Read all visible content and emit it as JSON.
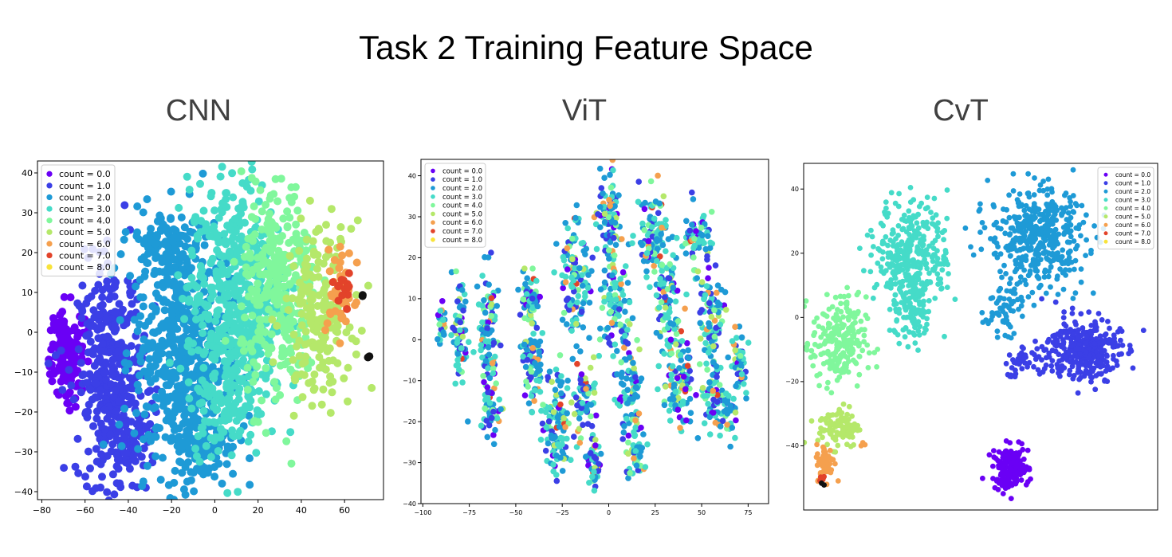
{
  "figure": {
    "title": "Task 2 Training Feature Space"
  },
  "chart_data": [
    {
      "type": "scatter",
      "title": "CNN",
      "xlim": [
        -82,
        78
      ],
      "ylim": [
        -42,
        43
      ],
      "xticks": [
        -80,
        -60,
        -40,
        -20,
        0,
        20,
        40,
        60
      ],
      "yticks": [
        -40,
        -30,
        -20,
        -10,
        0,
        10,
        20,
        30,
        40
      ],
      "legend": "upper-left",
      "grid": false,
      "series": [
        {
          "name": "count = 0.0",
          "color": "#6a00f5",
          "clusters": [
            {
              "x": -68,
              "y": -5,
              "rx": 7,
              "ry": 10,
              "n": 140
            }
          ]
        },
        {
          "name": "count = 1.0",
          "color": "#3b3fe6",
          "clusters": [
            {
              "x": -48,
              "y": -10,
              "rx": 14,
              "ry": 25,
              "n": 380
            },
            {
              "x": -38,
              "y": -28,
              "rx": 10,
              "ry": 8,
              "n": 60
            }
          ]
        },
        {
          "name": "count = 2.0",
          "color": "#1e9ad6",
          "clusters": [
            {
              "x": -15,
              "y": -5,
              "rx": 20,
              "ry": 28,
              "n": 520
            },
            {
              "x": -5,
              "y": -28,
              "rx": 14,
              "ry": 8,
              "n": 90
            },
            {
              "x": -25,
              "y": 22,
              "rx": 14,
              "ry": 8,
              "n": 90
            }
          ]
        },
        {
          "name": "count = 3.0",
          "color": "#45dbc8",
          "clusters": [
            {
              "x": 10,
              "y": 10,
              "rx": 20,
              "ry": 25,
              "n": 450
            },
            {
              "x": 5,
              "y": -15,
              "rx": 16,
              "ry": 15,
              "n": 150
            }
          ]
        },
        {
          "name": "count = 4.0",
          "color": "#80f79c",
          "clusters": [
            {
              "x": 30,
              "y": 10,
              "rx": 16,
              "ry": 25,
              "n": 320
            }
          ]
        },
        {
          "name": "count = 5.0",
          "color": "#b5e86a",
          "clusters": [
            {
              "x": 48,
              "y": 5,
              "rx": 14,
              "ry": 20,
              "n": 180
            }
          ]
        },
        {
          "name": "count = 6.0",
          "color": "#f5a04e",
          "clusters": [
            {
              "x": 58,
              "y": 10,
              "rx": 6,
              "ry": 10,
              "n": 45
            }
          ]
        },
        {
          "name": "count = 7.0",
          "color": "#e2432a",
          "clusters": [
            {
              "x": 60,
              "y": 11,
              "rx": 4,
              "ry": 4,
              "n": 14
            }
          ]
        },
        {
          "name": "count = 8.0",
          "color": "#f8e33a",
          "clusters": []
        },
        {
          "name": "",
          "color": "#111111",
          "clusters": [
            {
              "x": 68,
              "y": 9,
              "rx": 1,
              "ry": 1,
              "n": 2
            },
            {
              "x": 71,
              "y": -6,
              "rx": 1,
              "ry": 1,
              "n": 2
            }
          ]
        }
      ]
    },
    {
      "type": "scatter",
      "title": "ViT",
      "xlim": [
        -101,
        86
      ],
      "ylim": [
        -40,
        44
      ],
      "xticks": [
        -100,
        -75,
        -50,
        -25,
        0,
        25,
        50,
        75
      ],
      "yticks": [
        -40,
        -30,
        -20,
        -10,
        0,
        10,
        20,
        30,
        40
      ],
      "legend": "upper-left",
      "grid": false,
      "series": [
        {
          "name": "count = 0.0",
          "color": "#6a00f5",
          "mix": 0.05
        },
        {
          "name": "count = 1.0",
          "color": "#3b3fe6",
          "mix": 0.13
        },
        {
          "name": "count = 2.0",
          "color": "#1e9ad6",
          "mix": 0.3
        },
        {
          "name": "count = 3.0",
          "color": "#45dbc8",
          "mix": 0.3
        },
        {
          "name": "count = 4.0",
          "color": "#80f79c",
          "mix": 0.1
        },
        {
          "name": "count = 5.0",
          "color": "#b5e86a",
          "mix": 0.05
        },
        {
          "name": "count = 6.0",
          "color": "#f5a04e",
          "mix": 0.05
        },
        {
          "name": "count = 7.0",
          "color": "#e2432a",
          "mix": 0.015
        },
        {
          "name": "count = 8.0",
          "color": "#f8e33a",
          "mix": 0
        }
      ],
      "clusters": [
        {
          "x": -90,
          "y": 3,
          "rx": 2,
          "ry": 5,
          "n": 30
        },
        {
          "x": -80,
          "y": 0,
          "rx": 3,
          "ry": 12,
          "n": 70
        },
        {
          "x": -65,
          "y": 0,
          "rx": 5,
          "ry": 14,
          "n": 110
        },
        {
          "x": -63,
          "y": -18,
          "rx": 4,
          "ry": 6,
          "n": 35
        },
        {
          "x": -42,
          "y": 8,
          "rx": 5,
          "ry": 10,
          "n": 70
        },
        {
          "x": -40,
          "y": -8,
          "rx": 7,
          "ry": 8,
          "n": 70
        },
        {
          "x": -28,
          "y": -20,
          "rx": 6,
          "ry": 12,
          "n": 110
        },
        {
          "x": -18,
          "y": 15,
          "rx": 7,
          "ry": 14,
          "n": 120
        },
        {
          "x": -12,
          "y": -15,
          "rx": 5,
          "ry": 10,
          "n": 70
        },
        {
          "x": -8,
          "y": -30,
          "rx": 4,
          "ry": 5,
          "n": 40
        },
        {
          "x": 0,
          "y": 30,
          "rx": 6,
          "ry": 10,
          "n": 80
        },
        {
          "x": 3,
          "y": 10,
          "rx": 7,
          "ry": 12,
          "n": 100
        },
        {
          "x": 12,
          "y": -12,
          "rx": 6,
          "ry": 12,
          "n": 90
        },
        {
          "x": 15,
          "y": -28,
          "rx": 5,
          "ry": 5,
          "n": 40
        },
        {
          "x": 25,
          "y": 25,
          "rx": 8,
          "ry": 10,
          "n": 110
        },
        {
          "x": 32,
          "y": 8,
          "rx": 6,
          "ry": 10,
          "n": 80
        },
        {
          "x": 38,
          "y": -10,
          "rx": 8,
          "ry": 10,
          "n": 110
        },
        {
          "x": 48,
          "y": 25,
          "rx": 7,
          "ry": 8,
          "n": 70
        },
        {
          "x": 55,
          "y": 5,
          "rx": 7,
          "ry": 10,
          "n": 90
        },
        {
          "x": 58,
          "y": -15,
          "rx": 6,
          "ry": 8,
          "n": 70
        },
        {
          "x": 70,
          "y": -5,
          "rx": 4,
          "ry": 7,
          "n": 50
        },
        {
          "x": 66,
          "y": -18,
          "rx": 3,
          "ry": 5,
          "n": 25
        }
      ]
    },
    {
      "type": "scatter",
      "title": "CvT",
      "xlim": [
        -58,
        72
      ],
      "ylim": [
        -60,
        48
      ],
      "xticks": [],
      "yticks": [
        -40,
        -20,
        0,
        20,
        40
      ],
      "legend": "upper-right",
      "grid": false,
      "series": [
        {
          "name": "count = 0.0",
          "color": "#6a00f5",
          "clusters": [
            {
              "x": 18,
              "y": -47,
              "rx": 6,
              "ry": 6,
              "n": 160
            }
          ]
        },
        {
          "name": "count = 1.0",
          "color": "#3b3fe6",
          "clusters": [
            {
              "x": 45,
              "y": -10,
              "rx": 12,
              "ry": 9,
              "n": 330
            },
            {
              "x": 23,
              "y": -13,
              "rx": 7,
              "ry": 3,
              "n": 40
            },
            {
              "x": 18,
              "y": -18,
              "rx": 2,
              "ry": 1,
              "n": 6
            }
          ]
        },
        {
          "name": "count = 2.0",
          "color": "#1e9ad6",
          "clusters": [
            {
              "x": 28,
              "y": 25,
              "rx": 16,
              "ry": 14,
              "n": 430
            },
            {
              "x": 15,
              "y": 3,
              "rx": 6,
              "ry": 8,
              "n": 60
            }
          ]
        },
        {
          "name": "count = 3.0",
          "color": "#45dbc8",
          "clusters": [
            {
              "x": -18,
              "y": 20,
              "rx": 12,
              "ry": 15,
              "n": 330
            },
            {
              "x": -18,
              "y": 0,
              "rx": 7,
              "ry": 8,
              "n": 80
            }
          ]
        },
        {
          "name": "count = 4.0",
          "color": "#80f79c",
          "clusters": [
            {
              "x": -45,
              "y": -8,
              "rx": 9,
              "ry": 13,
              "n": 230
            }
          ]
        },
        {
          "name": "count = 5.0",
          "color": "#b5e86a",
          "clusters": [
            {
              "x": -45,
              "y": -34,
              "rx": 7,
              "ry": 6,
              "n": 100
            }
          ]
        },
        {
          "name": "count = 6.0",
          "color": "#f5a04e",
          "clusters": [
            {
              "x": -50,
              "y": -45,
              "rx": 3,
              "ry": 5,
              "n": 60
            },
            {
              "x": -36,
              "y": -40,
              "rx": 1,
              "ry": 1,
              "n": 4
            }
          ]
        },
        {
          "name": "count = 7.0",
          "color": "#e2432a",
          "clusters": [
            {
              "x": -51,
              "y": -50,
              "rx": 1,
              "ry": 1,
              "n": 5
            }
          ]
        },
        {
          "name": "count = 8.0",
          "color": "#f8e33a",
          "clusters": []
        },
        {
          "name": "",
          "color": "#111111",
          "clusters": [
            {
              "x": -51,
              "y": -52,
              "rx": 0.5,
              "ry": 0.5,
              "n": 2
            }
          ]
        }
      ]
    }
  ]
}
